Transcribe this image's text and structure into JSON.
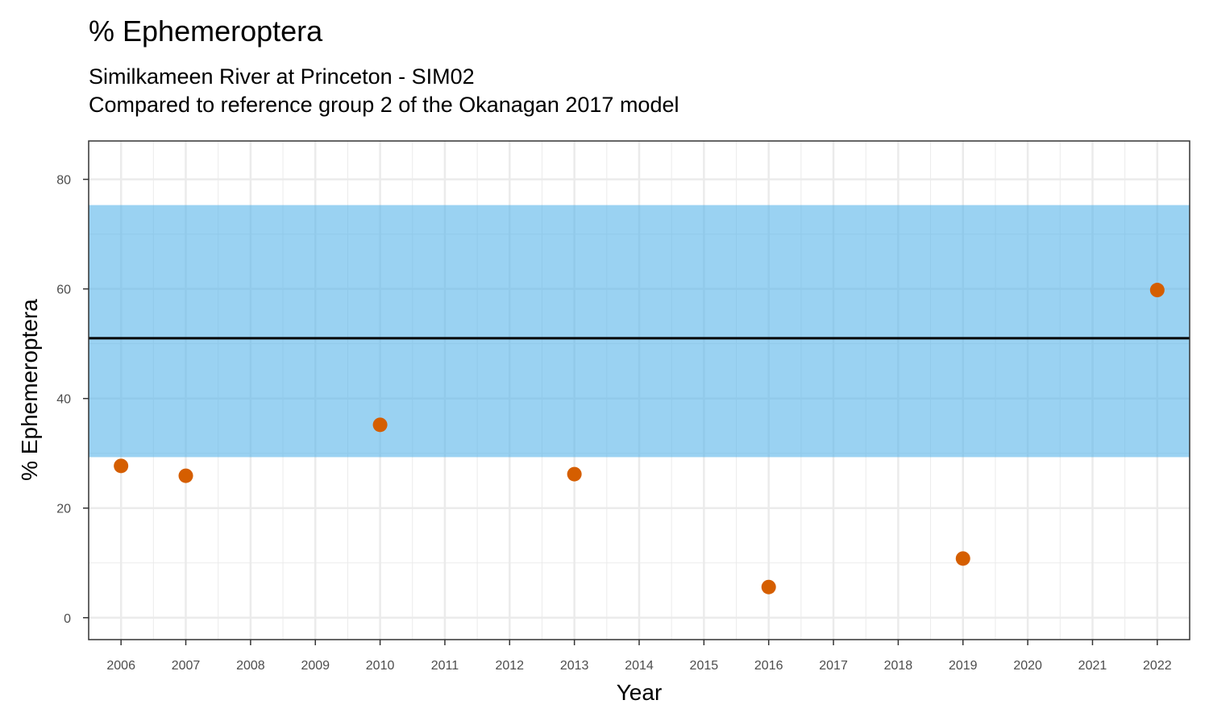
{
  "chart_data": {
    "type": "scatter",
    "title": "% Ephemeroptera",
    "subtitle_lines": [
      "Similkameen River at Princeton - SIM02",
      "Compared to reference group 2 of the Okanagan 2017 model"
    ],
    "xlabel": "Year",
    "ylabel": "% Ephemeroptera",
    "x_ticks": [
      2006,
      2007,
      2008,
      2009,
      2010,
      2011,
      2012,
      2013,
      2014,
      2015,
      2016,
      2017,
      2018,
      2019,
      2020,
      2021,
      2022
    ],
    "y_ticks": [
      0,
      20,
      40,
      60,
      80
    ],
    "xlim": [
      2005.5,
      2022.5
    ],
    "ylim": [
      -4,
      87
    ],
    "grid": true,
    "reference_band": {
      "lower": 29.3,
      "upper": 75.3,
      "color": "#56b4e9"
    },
    "reference_line": {
      "value": 51,
      "color": "#000000"
    },
    "series": [
      {
        "color": "#d55e00",
        "points": [
          {
            "x": 2006,
            "y": 27.7
          },
          {
            "x": 2007,
            "y": 25.9
          },
          {
            "x": 2010,
            "y": 35.2
          },
          {
            "x": 2013,
            "y": 26.2
          },
          {
            "x": 2016,
            "y": 5.6
          },
          {
            "x": 2019,
            "y": 10.8
          },
          {
            "x": 2022,
            "y": 59.8
          }
        ]
      }
    ]
  }
}
